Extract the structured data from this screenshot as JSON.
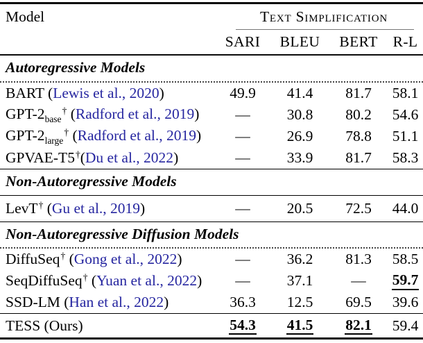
{
  "colors": {
    "citation": "#2626a0",
    "text": "#000000",
    "background": "#ffffff"
  },
  "table": {
    "header": {
      "model": "Model",
      "group": "Text Simplification",
      "metrics": [
        "SARI",
        "BLEU",
        "BERT",
        "R-L"
      ]
    },
    "sections": [
      {
        "title": "Autoregressive Models",
        "divider": "dotted",
        "rows": [
          {
            "name": "BART",
            "sub": "",
            "dagger": false,
            "cite": "Lewis et al., 2020",
            "tight": false,
            "cells": [
              {
                "text": "49.9"
              },
              {
                "text": "41.4"
              },
              {
                "text": "81.7"
              },
              {
                "text": "58.1"
              }
            ]
          },
          {
            "name": "GPT-2",
            "sub": "base",
            "dagger": true,
            "cite": "Radford et al., 2019",
            "tight": false,
            "cells": [
              {
                "text": "—"
              },
              {
                "text": "30.8"
              },
              {
                "text": "80.2"
              },
              {
                "text": "54.6"
              }
            ]
          },
          {
            "name": "GPT-2",
            "sub": "large",
            "dagger": true,
            "cite": "Radford et al., 2019",
            "tight": false,
            "cells": [
              {
                "text": "—"
              },
              {
                "text": "26.9"
              },
              {
                "text": "78.8"
              },
              {
                "text": "51.1"
              }
            ]
          },
          {
            "name": "GPVAE-T5",
            "sub": "",
            "dagger": true,
            "cite": "Du et al., 2022",
            "tight": true,
            "cells": [
              {
                "text": "—"
              },
              {
                "text": "33.9"
              },
              {
                "text": "81.7"
              },
              {
                "text": "58.3"
              }
            ]
          }
        ]
      },
      {
        "title": "Non-Autoregressive Models",
        "divider": "solid",
        "rows": [
          {
            "name": "LevT",
            "sub": "",
            "dagger": true,
            "cite": "Gu et al., 2019",
            "tight": false,
            "cells": [
              {
                "text": "—"
              },
              {
                "text": "20.5"
              },
              {
                "text": "72.5"
              },
              {
                "text": "44.0"
              }
            ]
          }
        ]
      },
      {
        "title": "Non-Autoregressive Diffusion Models",
        "divider": "dotted",
        "rows": [
          {
            "name": "DiffuSeq",
            "sub": "",
            "dagger": true,
            "cite": "Gong et al., 2022",
            "tight": false,
            "cells": [
              {
                "text": "—"
              },
              {
                "text": "36.2"
              },
              {
                "text": "81.3"
              },
              {
                "text": "58.5"
              }
            ]
          },
          {
            "name": "SeqDiffuSeq",
            "sub": "",
            "dagger": true,
            "cite": "Yuan et al., 2022",
            "tight": false,
            "cells": [
              {
                "text": "—"
              },
              {
                "text": "37.1"
              },
              {
                "text": "—"
              },
              {
                "text": "59.7",
                "best": true
              }
            ]
          },
          {
            "name": "SSD-LM",
            "sub": "",
            "dagger": false,
            "cite": "Han et al., 2022",
            "tight": false,
            "cells": [
              {
                "text": "36.3"
              },
              {
                "text": "12.5"
              },
              {
                "text": "69.5"
              },
              {
                "text": "39.6"
              }
            ]
          }
        ]
      }
    ],
    "footer": {
      "name": "TESS (Ours)",
      "cells": [
        {
          "text": "54.3",
          "best": true
        },
        {
          "text": "41.5",
          "best": true
        },
        {
          "text": "82.1",
          "best": true
        },
        {
          "text": "59.4"
        }
      ]
    }
  }
}
